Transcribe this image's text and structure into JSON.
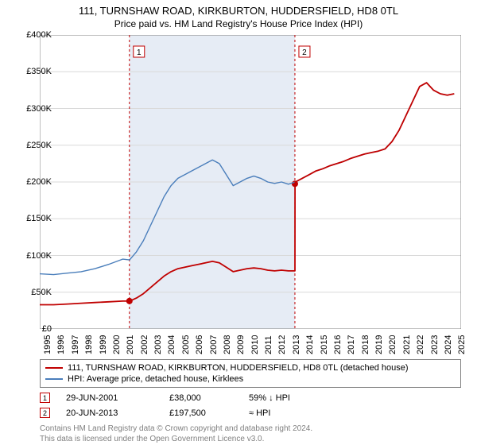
{
  "title": "111, TURNSHAW ROAD, KIRKBURTON, HUDDERSFIELD, HD8 0TL",
  "subtitle": "Price paid vs. HM Land Registry's House Price Index (HPI)",
  "chart": {
    "type": "line",
    "xlim": [
      1995,
      2025.5
    ],
    "ylim": [
      0,
      400000
    ],
    "ytick_step": 50000,
    "yticks": [
      "£0",
      "£50K",
      "£100K",
      "£150K",
      "£200K",
      "£250K",
      "£300K",
      "£350K",
      "£400K"
    ],
    "xticks": [
      1995,
      1996,
      1997,
      1998,
      1999,
      2000,
      2001,
      2002,
      2003,
      2004,
      2005,
      2006,
      2007,
      2008,
      2009,
      2010,
      2011,
      2012,
      2013,
      2014,
      2015,
      2016,
      2017,
      2018,
      2019,
      2020,
      2021,
      2022,
      2023,
      2024,
      2025
    ],
    "background_color": "#ffffff",
    "shaded_color": "#e6ecf5",
    "grid_color": "#d9d9d9",
    "series": [
      {
        "name": "hpi",
        "color": "#4a7ebb",
        "width": 1.4,
        "points": [
          [
            1995,
            75000
          ],
          [
            1996,
            74000
          ],
          [
            1997,
            76000
          ],
          [
            1998,
            78000
          ],
          [
            1999,
            82000
          ],
          [
            2000,
            88000
          ],
          [
            2001,
            95000
          ],
          [
            2001.5,
            94000
          ],
          [
            2002,
            105000
          ],
          [
            2002.5,
            120000
          ],
          [
            2003,
            140000
          ],
          [
            2003.5,
            160000
          ],
          [
            2004,
            180000
          ],
          [
            2004.5,
            195000
          ],
          [
            2005,
            205000
          ],
          [
            2005.5,
            210000
          ],
          [
            2006,
            215000
          ],
          [
            2006.5,
            220000
          ],
          [
            2007,
            225000
          ],
          [
            2007.5,
            230000
          ],
          [
            2008,
            225000
          ],
          [
            2008.5,
            210000
          ],
          [
            2009,
            195000
          ],
          [
            2009.5,
            200000
          ],
          [
            2010,
            205000
          ],
          [
            2010.5,
            208000
          ],
          [
            2011,
            205000
          ],
          [
            2011.5,
            200000
          ],
          [
            2012,
            198000
          ],
          [
            2012.5,
            200000
          ],
          [
            2013,
            197000
          ],
          [
            2013.5,
            200000
          ],
          [
            2014,
            205000
          ],
          [
            2014.5,
            210000
          ],
          [
            2015,
            215000
          ],
          [
            2015.5,
            218000
          ],
          [
            2016,
            222000
          ],
          [
            2016.5,
            225000
          ],
          [
            2017,
            228000
          ],
          [
            2017.5,
            232000
          ],
          [
            2018,
            235000
          ],
          [
            2018.5,
            238000
          ],
          [
            2019,
            240000
          ],
          [
            2019.5,
            242000
          ],
          [
            2020,
            245000
          ],
          [
            2020.5,
            255000
          ],
          [
            2021,
            270000
          ],
          [
            2021.5,
            290000
          ],
          [
            2022,
            310000
          ],
          [
            2022.5,
            330000
          ],
          [
            2023,
            335000
          ],
          [
            2023.5,
            325000
          ],
          [
            2024,
            320000
          ],
          [
            2024.5,
            318000
          ],
          [
            2025,
            320000
          ]
        ]
      },
      {
        "name": "property",
        "color": "#c00000",
        "width": 1.8,
        "points": [
          [
            1995,
            33000
          ],
          [
            1996,
            33000
          ],
          [
            1997,
            34000
          ],
          [
            1998,
            35000
          ],
          [
            1999,
            36000
          ],
          [
            2000,
            37000
          ],
          [
            2001,
            38000
          ],
          [
            2001.5,
            38000
          ],
          [
            2002,
            42000
          ],
          [
            2002.5,
            48000
          ],
          [
            2003,
            56000
          ],
          [
            2003.5,
            64000
          ],
          [
            2004,
            72000
          ],
          [
            2004.5,
            78000
          ],
          [
            2005,
            82000
          ],
          [
            2005.5,
            84000
          ],
          [
            2006,
            86000
          ],
          [
            2006.5,
            88000
          ],
          [
            2007,
            90000
          ],
          [
            2007.5,
            92000
          ],
          [
            2008,
            90000
          ],
          [
            2008.5,
            84000
          ],
          [
            2009,
            78000
          ],
          [
            2009.5,
            80000
          ],
          [
            2010,
            82000
          ],
          [
            2010.5,
            83000
          ],
          [
            2011,
            82000
          ],
          [
            2011.5,
            80000
          ],
          [
            2012,
            79000
          ],
          [
            2012.5,
            80000
          ],
          [
            2013,
            79000
          ],
          [
            2013.47,
            79000
          ],
          [
            2013.48,
            197500
          ],
          [
            2013.5,
            200000
          ],
          [
            2014,
            205000
          ],
          [
            2014.5,
            210000
          ],
          [
            2015,
            215000
          ],
          [
            2015.5,
            218000
          ],
          [
            2016,
            222000
          ],
          [
            2016.5,
            225000
          ],
          [
            2017,
            228000
          ],
          [
            2017.5,
            232000
          ],
          [
            2018,
            235000
          ],
          [
            2018.5,
            238000
          ],
          [
            2019,
            240000
          ],
          [
            2019.5,
            242000
          ],
          [
            2020,
            245000
          ],
          [
            2020.5,
            255000
          ],
          [
            2021,
            270000
          ],
          [
            2021.5,
            290000
          ],
          [
            2022,
            310000
          ],
          [
            2022.5,
            330000
          ],
          [
            2023,
            335000
          ],
          [
            2023.5,
            325000
          ],
          [
            2024,
            320000
          ],
          [
            2024.5,
            318000
          ],
          [
            2025,
            320000
          ]
        ]
      }
    ],
    "sale_markers": [
      {
        "n": "1",
        "x": 2001.49,
        "y": 38000,
        "dash_color": "#c00000"
      },
      {
        "n": "2",
        "x": 2013.47,
        "y": 197500,
        "dash_color": "#c00000"
      }
    ],
    "legend": [
      {
        "color": "#c00000",
        "label": "111, TURNSHAW ROAD, KIRKBURTON, HUDDERSFIELD, HD8 0TL (detached house)"
      },
      {
        "color": "#4a7ebb",
        "label": "HPI: Average price, detached house, Kirklees"
      }
    ]
  },
  "sales": [
    {
      "n": "1",
      "color": "#c00000",
      "date": "29-JUN-2001",
      "price": "£38,000",
      "vs": "59% ↓ HPI"
    },
    {
      "n": "2",
      "color": "#c00000",
      "date": "20-JUN-2013",
      "price": "£197,500",
      "vs": "≈ HPI"
    }
  ],
  "footer": {
    "line1": "Contains HM Land Registry data © Crown copyright and database right 2024.",
    "line2": "This data is licensed under the Open Government Licence v3.0."
  }
}
